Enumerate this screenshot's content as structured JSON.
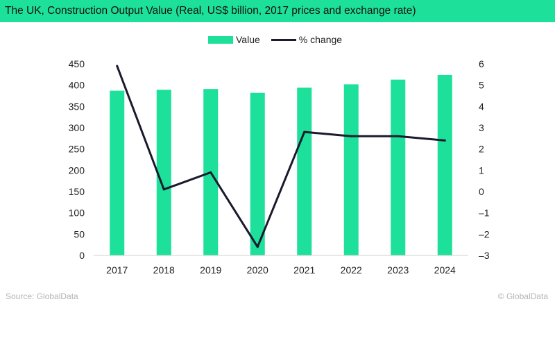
{
  "title": "The UK, Construction Output Value (Real, US$ billion, 2017 prices and exchange rate)",
  "source": "Source: GlobalData",
  "copyright": "© GlobalData",
  "chart_data": {
    "type": "bar",
    "categories": [
      "2017",
      "2018",
      "2019",
      "2020",
      "2021",
      "2022",
      "2023",
      "2024"
    ],
    "series": [
      {
        "name": "Value",
        "type": "bar",
        "axis": "left",
        "color": "#1de09a",
        "values": [
          387,
          389,
          391,
          382,
          394,
          402,
          413,
          424
        ]
      },
      {
        "name": "% change",
        "type": "line",
        "axis": "right",
        "color": "#1a1a2e",
        "values": [
          5.9,
          0.1,
          0.9,
          -2.6,
          2.8,
          2.6,
          2.6,
          2.4
        ]
      }
    ],
    "left_axis": {
      "min": 0,
      "max": 450,
      "ticks": [
        "0",
        "50",
        "100",
        "150",
        "200",
        "250",
        "300",
        "350",
        "400",
        "450"
      ]
    },
    "right_axis": {
      "min": -3,
      "max": 6,
      "ticks": [
        "-3",
        "-2",
        "-1",
        "0",
        "1",
        "2",
        "3",
        "4",
        "5",
        "6"
      ]
    },
    "grid": false,
    "legend_position": "top-center"
  }
}
